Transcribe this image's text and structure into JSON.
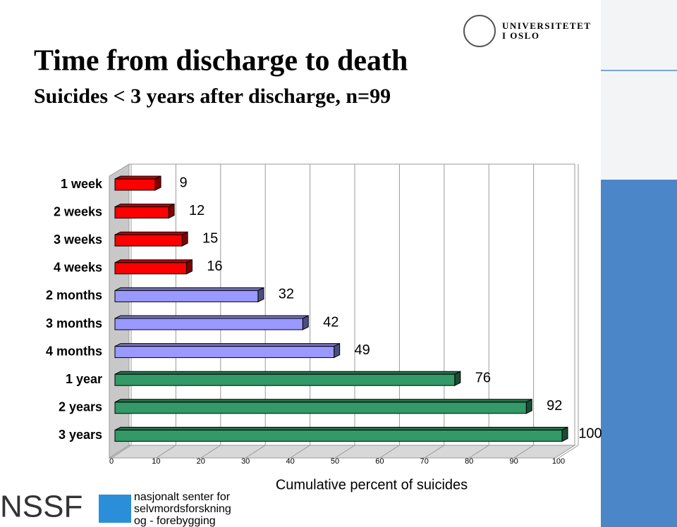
{
  "chart_data": {
    "type": "bar3d",
    "title": "Time from discharge to death",
    "subtitle": "Suicides < 3 years after discharge, n=99",
    "x_label": "Cumulative percent of suicides",
    "categories": [
      "1 week",
      "2 weeks",
      "3 weeks",
      "4 weeks",
      "2 months",
      "3 months",
      "4 months",
      "1 year",
      "2 years",
      "3 years"
    ],
    "values": [
      9,
      12,
      15,
      16,
      32,
      42,
      49,
      76,
      92,
      100
    ],
    "colors": [
      "#ff0000",
      "#ff0000",
      "#ff0000",
      "#ff0000",
      "#9999ff",
      "#9999ff",
      "#9999ff",
      "#339966",
      "#339966",
      "#339966"
    ],
    "xlim": [
      0,
      100
    ],
    "xticks": [
      0,
      10,
      20,
      30,
      40,
      50,
      60,
      70,
      80,
      90,
      100
    ],
    "grid": true
  },
  "branding": {
    "university": [
      "UNIVERSITETET",
      "I OSLO"
    ],
    "logo": "NSSF",
    "logo_text": [
      "nasjonalt senter for",
      "selvmordsforskning",
      "og - forebygging"
    ]
  }
}
